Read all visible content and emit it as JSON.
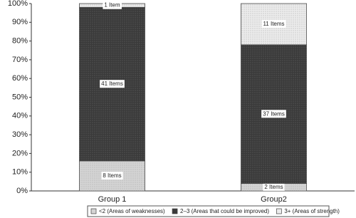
{
  "chart_data": {
    "type": "stacked_bar",
    "categories": [
      "Group 1",
      "Group2"
    ],
    "series": [
      {
        "name": "<2 (Areas of weaknesses)",
        "color": "#d4d4d4",
        "values": [
          16,
          4
        ],
        "item_labels": [
          "8 Items",
          "2 Items"
        ]
      },
      {
        "name": "2–3 (Areas that could be improved)",
        "color": "#3a3a3a",
        "values": [
          82,
          74
        ],
        "item_labels": [
          "41 Items",
          "37 Items"
        ]
      },
      {
        "name": "3+ (Areas of strength)",
        "color": "#ececec",
        "values": [
          2,
          22
        ],
        "item_labels": [
          "1 Item",
          "11 Items"
        ]
      }
    ],
    "ylim": [
      0,
      100
    ],
    "yticks": [
      {
        "value": 0,
        "label": "0%"
      },
      {
        "value": 10,
        "label": "10%"
      },
      {
        "value": 20,
        "label": "20%"
      },
      {
        "value": 30,
        "label": "30%"
      },
      {
        "value": 40,
        "label": "40%"
      },
      {
        "value": 50,
        "label": "50%"
      },
      {
        "value": 60,
        "label": "60%"
      },
      {
        "value": 70,
        "label": "70%"
      },
      {
        "value": 80,
        "label": "80%"
      },
      {
        "value": 90,
        "label": "90%"
      },
      {
        "value": 100,
        "label": "100%"
      }
    ],
    "grid": false
  }
}
